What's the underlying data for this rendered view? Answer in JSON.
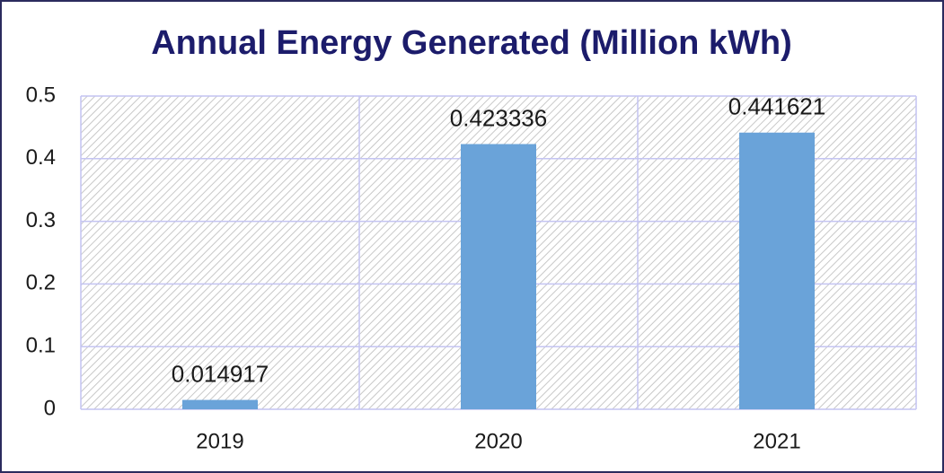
{
  "chart_data": {
    "type": "bar",
    "title": "Annual Energy Generated (Million kWh)",
    "categories": [
      "2019",
      "2020",
      "2021"
    ],
    "values": [
      0.014917,
      0.423336,
      0.441621
    ],
    "color": "#6aa3d9",
    "ylim": [
      0,
      0.5
    ],
    "yticks": [
      0,
      0.1,
      0.2,
      0.3,
      0.4,
      0.5
    ],
    "grid": true
  }
}
